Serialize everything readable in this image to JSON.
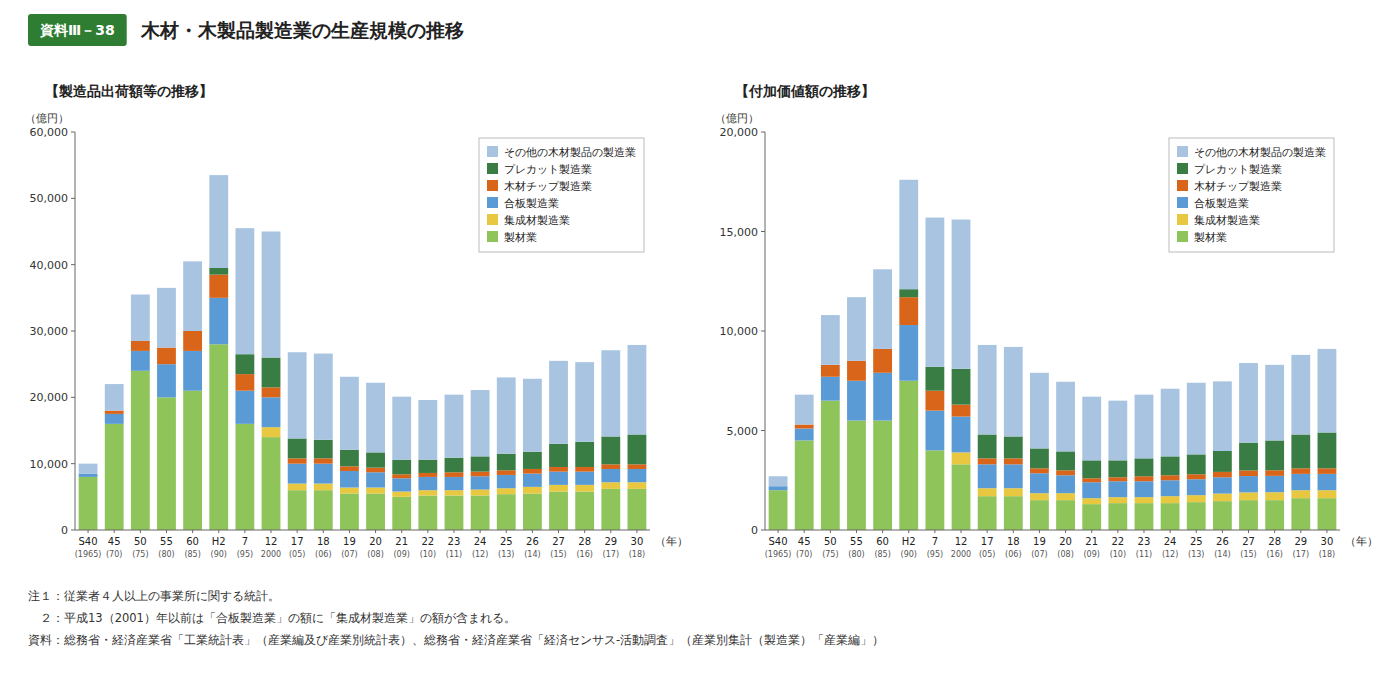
{
  "title": "木材・木製品製造業の生産規模の推移",
  "subtitle": "資料Ⅲ－38",
  "annotations": [
    "注１：従業者４人以上の事業所に関する統計。",
    "　２：平成13（2001）年以前は「合板製造業」の額に「集成材製造業」の額が含まれる。",
    "資料：総務省・経済産業省「工業統計表」（産業編及び産業別統計表）、総務省・経済産業省「経済センサス-活動調査」（産業別集計（製造業）「産業編」）"
  ],
  "chart_data": [
    {
      "type": "bar",
      "title": "【製造品出荷額等の推移】",
      "ylabel": "（億円）",
      "xlabel": "（年）",
      "stacked": true,
      "legend": "upper right",
      "grid": false,
      "categories": [
        "S40\n(1965)",
        "45\n(70)",
        "50\n(75)",
        "55\n(80)",
        "60\n(85)",
        "H2\n(90)",
        "7\n(95)",
        "12\n2000",
        "17\n(05)",
        "18\n(06)",
        "19\n(07)",
        "20\n(08)",
        "21\n(09)",
        "22\n(10)",
        "23\n(11)",
        "24\n(12)",
        "25\n(13)",
        "26\n(14)",
        "27\n(15)",
        "28\n(16)",
        "29\n(17)",
        "30\n(18)"
      ],
      "ylim": [
        0,
        60000
      ],
      "yticks": [
        0,
        {
          "value": 10000,
          "label": "10,000"
        },
        {
          "value": 20000,
          "label": "20,000"
        },
        {
          "value": 30000,
          "label": "30,000"
        },
        {
          "value": 40000,
          "label": "40,000"
        },
        {
          "value": 50000,
          "label": "50,000"
        },
        {
          "value": 60000,
          "label": "60,000"
        }
      ],
      "series": [
        {
          "name": "製材業",
          "color": "#8fc45a",
          "values": [
            8000,
            16000,
            24000,
            20000,
            21000,
            28000,
            16000,
            14000,
            6000,
            6000,
            5500,
            5500,
            5000,
            5200,
            5200,
            5200,
            5400,
            5500,
            5800,
            5800,
            6200,
            6200
          ]
        },
        {
          "name": "集成材製造業",
          "color": "#e8c840",
          "values": [
            0,
            0,
            0,
            0,
            0,
            0,
            0,
            1500,
            1000,
            1000,
            900,
            900,
            800,
            800,
            800,
            900,
            900,
            1000,
            1000,
            1000,
            1000,
            1000
          ]
        },
        {
          "name": "合板製造業",
          "color": "#5b9bd5",
          "values": [
            500,
            1500,
            3000,
            5000,
            6000,
            7000,
            5000,
            4500,
            3000,
            3000,
            2500,
            2300,
            2000,
            2000,
            2000,
            2000,
            2000,
            2000,
            2000,
            2000,
            2000,
            2000
          ]
        },
        {
          "name": "木材チップ製造業",
          "color": "#d9651a",
          "values": [
            0,
            500,
            1500,
            2500,
            3000,
            3500,
            2500,
            1500,
            800,
            800,
            700,
            700,
            600,
            600,
            700,
            700,
            700,
            700,
            700,
            700,
            700,
            700
          ]
        },
        {
          "name": "プレカット製造業",
          "color": "#3a7d44",
          "values": [
            0,
            0,
            0,
            0,
            0,
            1000,
            3000,
            4500,
            3000,
            2800,
            2500,
            2300,
            2200,
            2000,
            2200,
            2300,
            2500,
            2600,
            3500,
            3800,
            4200,
            4500
          ]
        },
        {
          "name": "その他の木材製品の製造業",
          "color": "#a8c4e0",
          "values": [
            1500,
            4000,
            7000,
            9000,
            10500,
            14000,
            19000,
            19000,
            13000,
            13000,
            11000,
            10500,
            9500,
            9000,
            9500,
            10000,
            11500,
            11000,
            12500,
            12000,
            13000,
            13500
          ]
        }
      ]
    },
    {
      "type": "bar",
      "title": "【付加価値額の推移】",
      "ylabel": "（億円）",
      "xlabel": "（年）",
      "stacked": true,
      "legend": "upper right",
      "grid": false,
      "categories": [
        "S40\n(1965)",
        "45\n(70)",
        "50\n(75)",
        "55\n(80)",
        "60\n(85)",
        "H2\n(90)",
        "7\n(95)",
        "12\n2000",
        "17\n(05)",
        "18\n(06)",
        "19\n(07)",
        "20\n(08)",
        "21\n(09)",
        "22\n(10)",
        "23\n(11)",
        "24\n(12)",
        "25\n(13)",
        "26\n(14)",
        "27\n(15)",
        "28\n(16)",
        "29\n(17)",
        "30\n(18)"
      ],
      "ylim": [
        0,
        20000
      ],
      "yticks": [
        0,
        {
          "value": 5000,
          "label": "5,000"
        },
        {
          "value": 10000,
          "label": "10,000"
        },
        {
          "value": 15000,
          "label": "15,000"
        },
        {
          "value": 20000,
          "label": "20,000"
        }
      ],
      "series": [
        {
          "name": "製材業",
          "color": "#8fc45a",
          "values": [
            2000,
            4500,
            6500,
            5500,
            5500,
            7500,
            4000,
            3300,
            1700,
            1700,
            1500,
            1500,
            1300,
            1350,
            1350,
            1350,
            1400,
            1450,
            1500,
            1500,
            1600,
            1600
          ]
        },
        {
          "name": "集成材製造業",
          "color": "#e8c840",
          "values": [
            0,
            0,
            0,
            0,
            0,
            0,
            0,
            600,
            400,
            400,
            350,
            350,
            300,
            300,
            300,
            350,
            350,
            380,
            390,
            400,
            400,
            400
          ]
        },
        {
          "name": "合板製造業",
          "color": "#5b9bd5",
          "values": [
            200,
            600,
            1200,
            2000,
            2400,
            2800,
            2000,
            1800,
            1200,
            1200,
            1000,
            900,
            800,
            800,
            800,
            800,
            800,
            820,
            820,
            820,
            820,
            820
          ]
        },
        {
          "name": "木材チップ製造業",
          "color": "#d9651a",
          "values": [
            0,
            200,
            600,
            1000,
            1200,
            1400,
            1000,
            600,
            300,
            300,
            250,
            250,
            200,
            200,
            250,
            250,
            250,
            270,
            280,
            280,
            280,
            280
          ]
        },
        {
          "name": "プレカット製造業",
          "color": "#3a7d44",
          "values": [
            0,
            0,
            0,
            0,
            0,
            400,
            1200,
            1800,
            1200,
            1100,
            1000,
            950,
            900,
            850,
            900,
            950,
            1000,
            1050,
            1400,
            1500,
            1700,
            1800
          ]
        },
        {
          "name": "その他の木材製品の製造業",
          "color": "#a8c4e0",
          "values": [
            500,
            1500,
            2500,
            3200,
            4000,
            5500,
            7500,
            7500,
            4500,
            4500,
            3800,
            3500,
            3200,
            3000,
            3200,
            3400,
            3600,
            3500,
            4000,
            3800,
            4000,
            4200
          ]
        }
      ]
    }
  ]
}
